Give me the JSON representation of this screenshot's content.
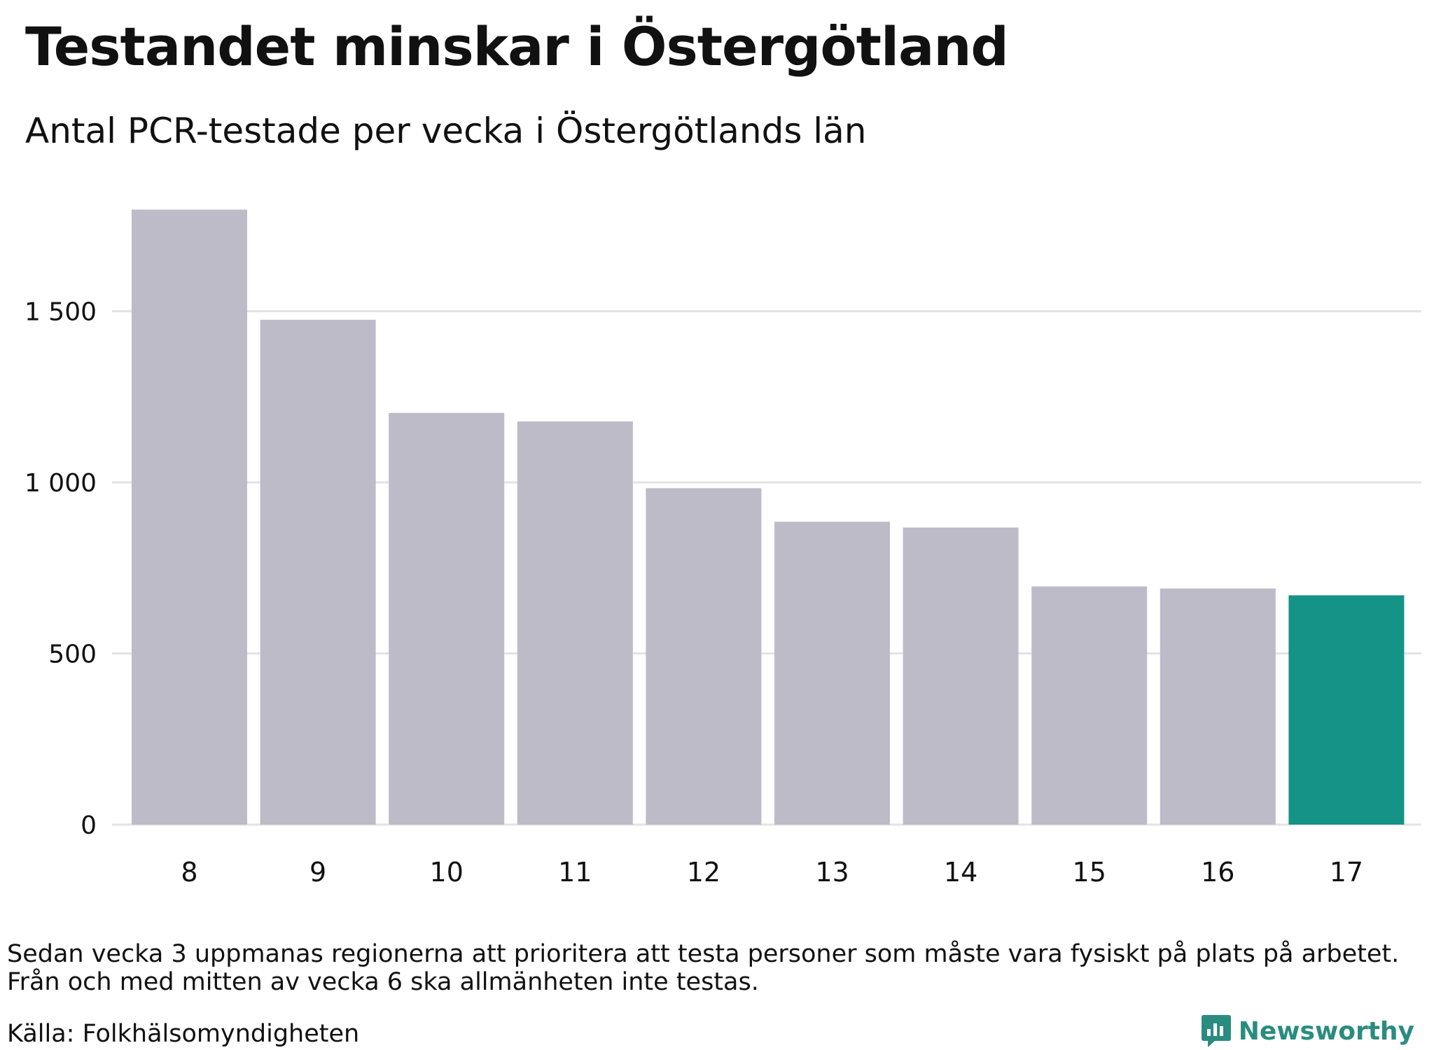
{
  "title": "Testandet minskar i Östergötland",
  "subtitle": "Antal PCR-testade per vecka i Östergötlands län",
  "footnote": [
    "Sedan vecka 3 uppmanas regionerna att prioritera att testa personer som måste vara fysiskt på plats på arbetet.",
    "Från och med mitten av vecka 6 ska allmänheten inte testas."
  ],
  "source": "Källa: Folkhälsomyndigheten",
  "brand": {
    "name": "Newsworthy",
    "icon": "newsworthy-logo-icon"
  },
  "colors": {
    "bar": "#bdbbc8",
    "highlight": "#159386",
    "grid": "#e3e3e6",
    "text": "#111111",
    "brand": "#2a8c7f"
  },
  "chart_data": {
    "type": "bar",
    "categories": [
      "8",
      "9",
      "10",
      "11",
      "12",
      "13",
      "14",
      "15",
      "16",
      "17"
    ],
    "values": [
      1797,
      1475,
      1203,
      1178,
      983,
      885,
      868,
      696,
      690,
      670
    ],
    "highlight_index": 9,
    "ylim": [
      0,
      1800
    ],
    "yticks": [
      0,
      500,
      1000,
      1500
    ],
    "ytick_labels": [
      "0",
      "500",
      "1 000",
      "1 500"
    ],
    "xlabel": "",
    "ylabel": "",
    "grid": true
  }
}
